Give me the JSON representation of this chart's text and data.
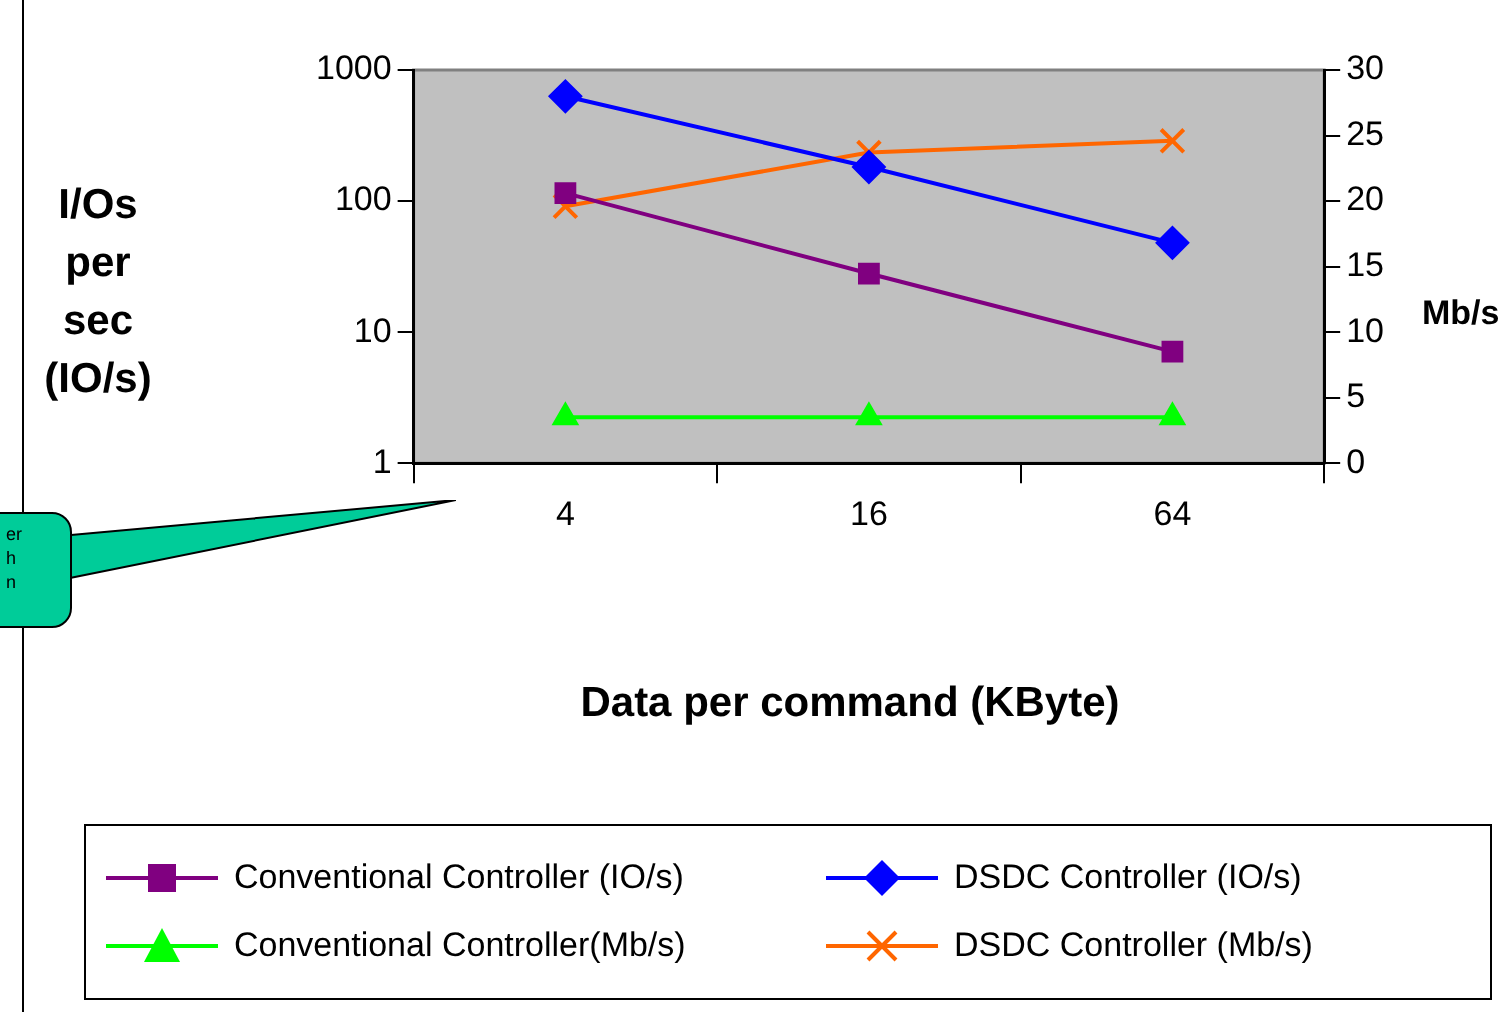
{
  "chart_data": {
    "type": "line",
    "xlabel": "Data per command (KByte)",
    "ylabel": "I/Os\nper\nsec\n(IO/s)",
    "y2label": "Mb/s",
    "categories": [
      "4",
      "16",
      "64"
    ],
    "series": [
      {
        "name": "Conventional Controller (IO/s)",
        "color": "#800080",
        "marker": "square",
        "values": [
          115,
          28,
          7.1
        ]
      },
      {
        "name": "DSDC Controller (IO/s)",
        "color": "#0000ff",
        "marker": "diamond",
        "values": [
          630,
          182,
          48
        ]
      },
      {
        "name": "Conventional Controller(Mb/s)",
        "color": "#00ff00",
        "marker": "triangle",
        "axis": "y2",
        "values": [
          3.5,
          3.5,
          3.5
        ]
      },
      {
        "name": "DSDC Controller (Mb/s)",
        "color": "#ff6600",
        "marker": "cross",
        "axis": "y2",
        "values": [
          19.6,
          23.7,
          24.6
        ]
      }
    ],
    "log": "y",
    "ylim": [
      1,
      1000
    ],
    "yticks": [
      1,
      10,
      100,
      1000
    ],
    "y2lim": [
      0,
      30
    ],
    "y2ticks": [
      0,
      5,
      10,
      15,
      20,
      25,
      30
    ],
    "grid": false,
    "legend": "bottom",
    "annotations": [
      "er\nh\nn"
    ]
  }
}
